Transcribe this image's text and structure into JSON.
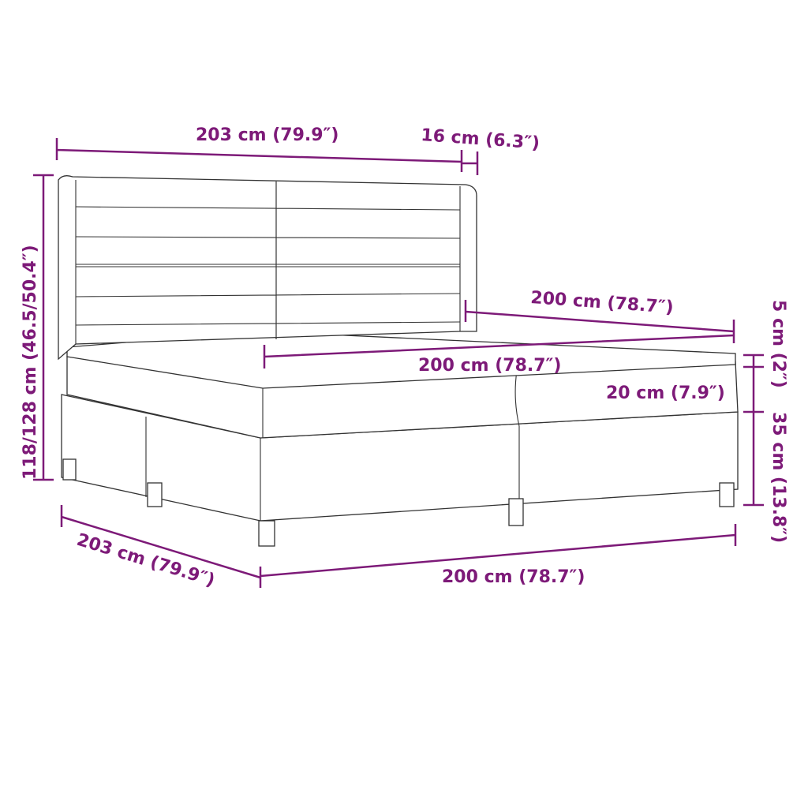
{
  "accent_color": "#7d1a78",
  "labels": {
    "headboard_width": "203 cm (79.9″)",
    "headboard_depth": "16 cm (6.3″)",
    "total_height": "118/128 cm (46.5/50.4″)",
    "topper_length": "200 cm (78.7″)",
    "topper_width": "200 cm (78.7″)",
    "topper_thickness": "5 cm (2″)",
    "mattress_thickness": "20 cm (7.9″)",
    "base_height": "35 cm (13.8″)",
    "bed_length": "203 cm (79.9″)",
    "bed_width": "200 cm (78.7″)"
  }
}
